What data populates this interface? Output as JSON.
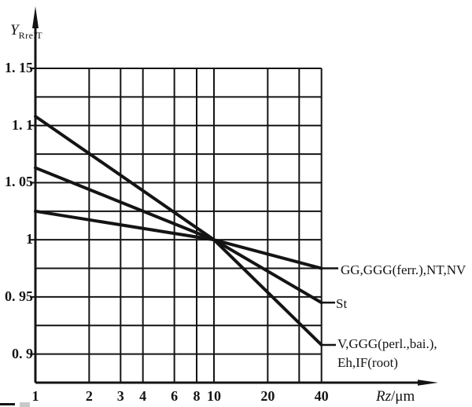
{
  "figure": {
    "background": "#ffffff",
    "ink_color": "#141414"
  },
  "chart_data": {
    "type": "line",
    "title": "",
    "grid": true,
    "x_axis": {
      "symbol": "Rz",
      "unit": "/μm",
      "scale": "log",
      "range": [
        1,
        40
      ],
      "tick_values": [
        1,
        2,
        3,
        4,
        6,
        8,
        10,
        20,
        40
      ],
      "tick_labels": [
        "1",
        "2",
        "3",
        "4",
        "6",
        "8",
        "10",
        "20",
        "40"
      ],
      "gridline_values": [
        1,
        2,
        3,
        4,
        6,
        8,
        10,
        20,
        30,
        40
      ]
    },
    "y_axis": {
      "symbol": "Y",
      "symbol_sub": "RrelT",
      "scale": "linear",
      "range": [
        0.875,
        1.15
      ],
      "grid_step": 0.025,
      "tick_values": [
        1.15,
        1.1,
        1.05,
        1.0,
        0.95,
        0.9
      ],
      "tick_labels": [
        "1. 15",
        "1. 1",
        "1. 05",
        "1",
        "0. 95",
        "0. 9"
      ]
    },
    "convergence_point": {
      "x": 10,
      "y": 1.0
    },
    "series": [
      {
        "name": "GG,GGG(ferr.),NT,NV",
        "x": [
          1,
          10,
          40
        ],
        "y": [
          1.025,
          1.0,
          0.975
        ]
      },
      {
        "name": "St",
        "x": [
          1,
          10,
          40
        ],
        "y": [
          1.063,
          1.0,
          0.945
        ]
      },
      {
        "name": "V,GGG(perl.,bai.),Eh,IF(root)",
        "x": [
          1,
          10,
          40
        ],
        "y": [
          1.108,
          1.0,
          0.908
        ]
      }
    ],
    "annotations": [
      {
        "text": "GG,GGG(ferr.),NT,NV"
      },
      {
        "text": "St"
      },
      {
        "line1": "V,GGG(perl.,bai.),",
        "line2": "Eh,IF(root)"
      }
    ],
    "legend_position": "right-of-line-ends"
  }
}
